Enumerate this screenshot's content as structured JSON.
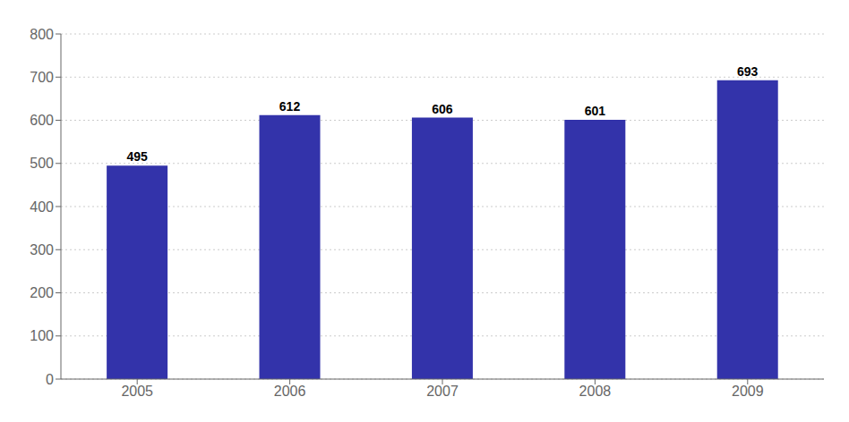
{
  "chart_data": {
    "type": "bar",
    "categories": [
      "2005",
      "2006",
      "2007",
      "2008",
      "2009"
    ],
    "values": [
      495,
      612,
      606,
      601,
      693
    ],
    "color": "#3333aa",
    "ylim": [
      0,
      800
    ],
    "yticks": [
      0,
      100,
      200,
      300,
      400,
      500,
      600,
      700,
      800
    ],
    "grid": true,
    "data_labels": true
  }
}
